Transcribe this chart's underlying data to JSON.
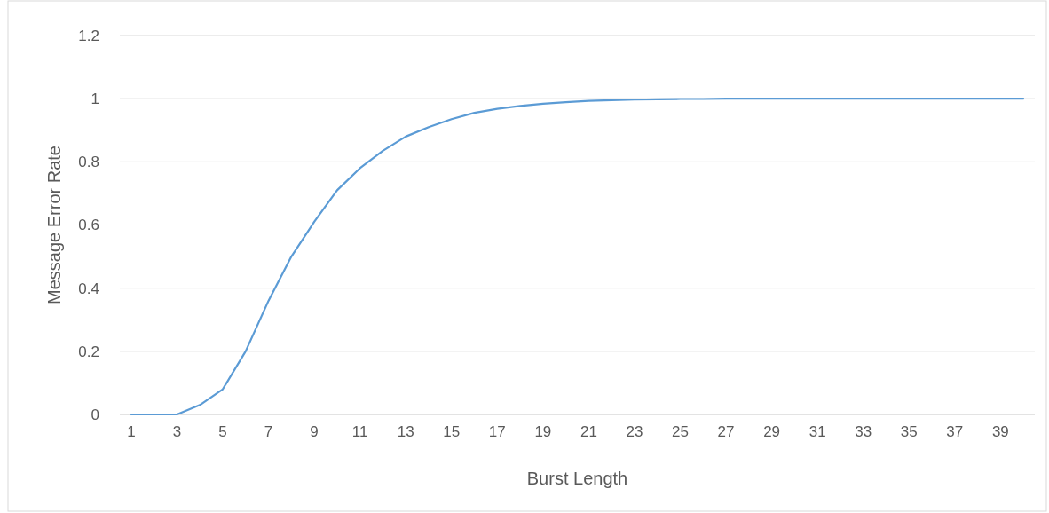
{
  "chart_data": {
    "type": "line",
    "xlabel": "Burst Length",
    "ylabel": "Message Error Rate",
    "x": [
      1,
      2,
      3,
      4,
      5,
      6,
      7,
      8,
      9,
      10,
      11,
      12,
      13,
      14,
      15,
      16,
      17,
      18,
      19,
      20,
      21,
      22,
      23,
      24,
      25,
      26,
      27,
      28,
      29,
      30,
      31,
      32,
      33,
      34,
      35,
      36,
      37,
      38,
      39,
      40
    ],
    "xlim": [
      0.5,
      40.5
    ],
    "xticks": [
      1,
      3,
      5,
      7,
      9,
      11,
      13,
      15,
      17,
      19,
      21,
      23,
      25,
      27,
      29,
      31,
      33,
      35,
      37,
      39
    ],
    "series": [
      {
        "color": "#5b9bd5",
        "values": [
          0,
          0,
          0,
          0.03,
          0.08,
          0.2,
          0.36,
          0.5,
          0.61,
          0.71,
          0.78,
          0.835,
          0.88,
          0.91,
          0.935,
          0.955,
          0.968,
          0.977,
          0.984,
          0.989,
          0.993,
          0.995,
          0.997,
          0.998,
          0.999,
          0.999,
          1,
          1,
          1,
          1,
          1,
          1,
          1,
          1,
          1,
          1,
          1,
          1,
          1,
          1
        ]
      }
    ],
    "ylim": [
      0,
      1.2
    ],
    "yticks": [
      0,
      0.2,
      0.4,
      0.6,
      0.8,
      1,
      1.2
    ],
    "grid": "y",
    "marker": "none",
    "line_style": "solid"
  }
}
